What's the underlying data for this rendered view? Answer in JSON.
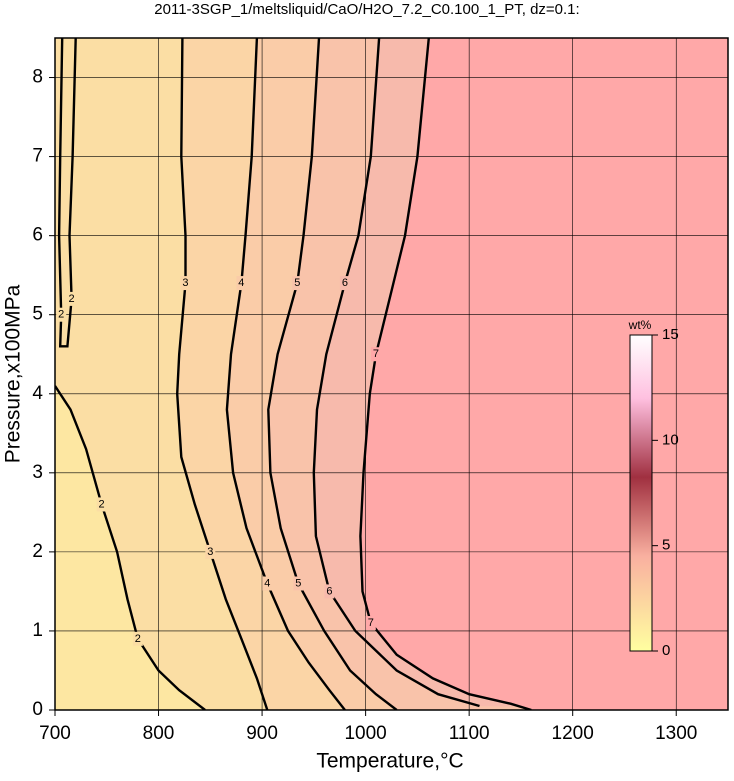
{
  "chart_data": {
    "type": "contour",
    "title": "2011-3SGP_1/meltsliquid/CaO/H2O_7.2_C0.100_1_PT, dz=0.1:",
    "x_label": "Temperature,°C",
    "y_label": "Pressure,x100MPa",
    "xlim": [
      700,
      1350
    ],
    "ylim": [
      0,
      8.5
    ],
    "xticks": [
      700,
      800,
      900,
      1000,
      1100,
      1200,
      1300
    ],
    "yticks": [
      0,
      1,
      2,
      3,
      4,
      5,
      6,
      7,
      8
    ],
    "grid": true,
    "contours": [
      {
        "level": 2,
        "x": [
          720,
          717,
          714,
          716,
          712,
          705,
          706,
          704,
          705,
          707
        ],
        "y": [
          8.5,
          7,
          6,
          5.2,
          4.6,
          4.6,
          5,
          6,
          7,
          8.5
        ]
      },
      {
        "level": 2,
        "x": [
          700,
          715,
          730,
          745,
          760,
          770,
          780,
          800,
          820,
          845
        ],
        "y": [
          4.1,
          3.8,
          3.3,
          2.6,
          2.0,
          1.4,
          0.9,
          0.5,
          0.25,
          0
        ]
      },
      {
        "level": 3,
        "x": [
          823,
          822,
          826,
          826,
          820,
          818,
          822,
          835,
          850,
          865,
          880,
          895,
          905
        ],
        "y": [
          8.5,
          7,
          6,
          5.4,
          4.5,
          4,
          3.2,
          2.6,
          2,
          1.4,
          0.9,
          0.4,
          0
        ]
      },
      {
        "level": 4,
        "x": [
          895,
          890,
          884,
          880,
          870,
          866,
          872,
          885,
          905,
          925,
          945,
          965,
          980
        ],
        "y": [
          8.5,
          7,
          6,
          5.4,
          4.5,
          3.8,
          3,
          2.3,
          1.6,
          1,
          0.6,
          0.25,
          0
        ]
      },
      {
        "level": 5,
        "x": [
          955,
          948,
          940,
          934,
          915,
          906,
          908,
          918,
          935,
          960,
          985,
          1010,
          1030
        ],
        "y": [
          8.5,
          7,
          6,
          5.4,
          4.5,
          3.8,
          3,
          2.3,
          1.6,
          1,
          0.5,
          0.2,
          0
        ]
      },
      {
        "level": 6,
        "x": [
          1013,
          1005,
          993,
          980,
          962,
          953,
          950,
          952,
          965,
          990,
          1030,
          1070,
          1110
        ],
        "y": [
          8.5,
          7,
          6,
          5.4,
          4.5,
          3.8,
          3,
          2.2,
          1.5,
          1,
          0.5,
          0.2,
          0.05
        ]
      },
      {
        "level": 7,
        "x": [
          1061,
          1050,
          1038,
          1025,
          1010,
          1004,
          998,
          995,
          997,
          1005,
          1030,
          1065,
          1100,
          1140,
          1160
        ],
        "y": [
          8.5,
          7,
          6,
          5.3,
          4.5,
          4,
          3,
          2.2,
          1.5,
          1.1,
          0.7,
          0.4,
          0.2,
          0.08,
          0
        ]
      }
    ],
    "colorbar": {
      "label": "wt%",
      "lim": [
        0,
        15
      ],
      "ticks": [
        0,
        5,
        10,
        15
      ]
    }
  }
}
